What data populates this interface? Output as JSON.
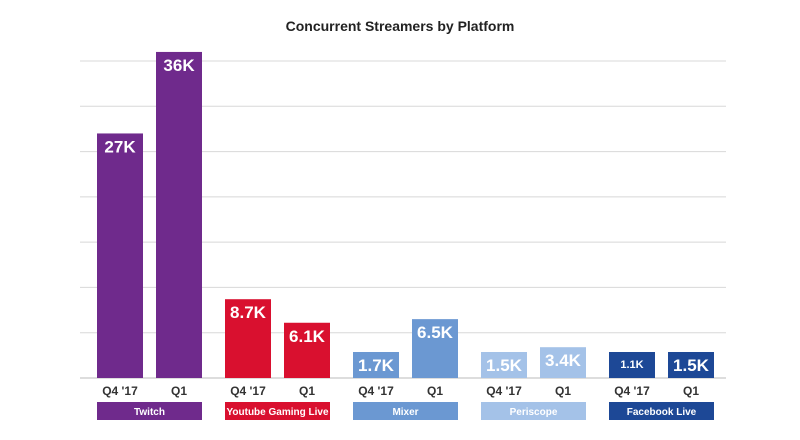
{
  "chart_data": {
    "type": "bar",
    "title": "Concurrent Streamers by Platform",
    "xlabel": "",
    "ylabel": "",
    "ylim": [
      0,
      35000
    ],
    "grid": true,
    "legend": "none",
    "groups": [
      {
        "name": "Twitch",
        "color": "#6f2a8c",
        "bars": [
          {
            "category": "Q4 '17",
            "value": 27000,
            "label": "27K"
          },
          {
            "category": "Q1",
            "value": 36000,
            "label": "36K"
          }
        ]
      },
      {
        "name": "Youtube Gaming Live",
        "color": "#d9102f",
        "bars": [
          {
            "category": "Q4 '17",
            "value": 8700,
            "label": "8.7K"
          },
          {
            "category": "Q1",
            "value": 6100,
            "label": "6.1K"
          }
        ]
      },
      {
        "name": "Mixer",
        "color": "#6b98d2",
        "bars": [
          {
            "category": "Q4 '17",
            "value": 1700,
            "label": "1.7K"
          },
          {
            "category": "Q1",
            "value": 6500,
            "label": "6.5K"
          }
        ]
      },
      {
        "name": "Periscope",
        "color": "#a4c2e8",
        "bars": [
          {
            "category": "Q4 '17",
            "value": 1500,
            "label": "1.5K"
          },
          {
            "category": "Q1",
            "value": 3400,
            "label": "3.4K"
          }
        ]
      },
      {
        "name": "Facebook Live",
        "color": "#1d4896",
        "bars": [
          {
            "category": "Q4 '17",
            "value": 1100,
            "label": "1.1K"
          },
          {
            "category": "Q1",
            "value": 1500,
            "label": "1.5K"
          }
        ]
      }
    ]
  }
}
